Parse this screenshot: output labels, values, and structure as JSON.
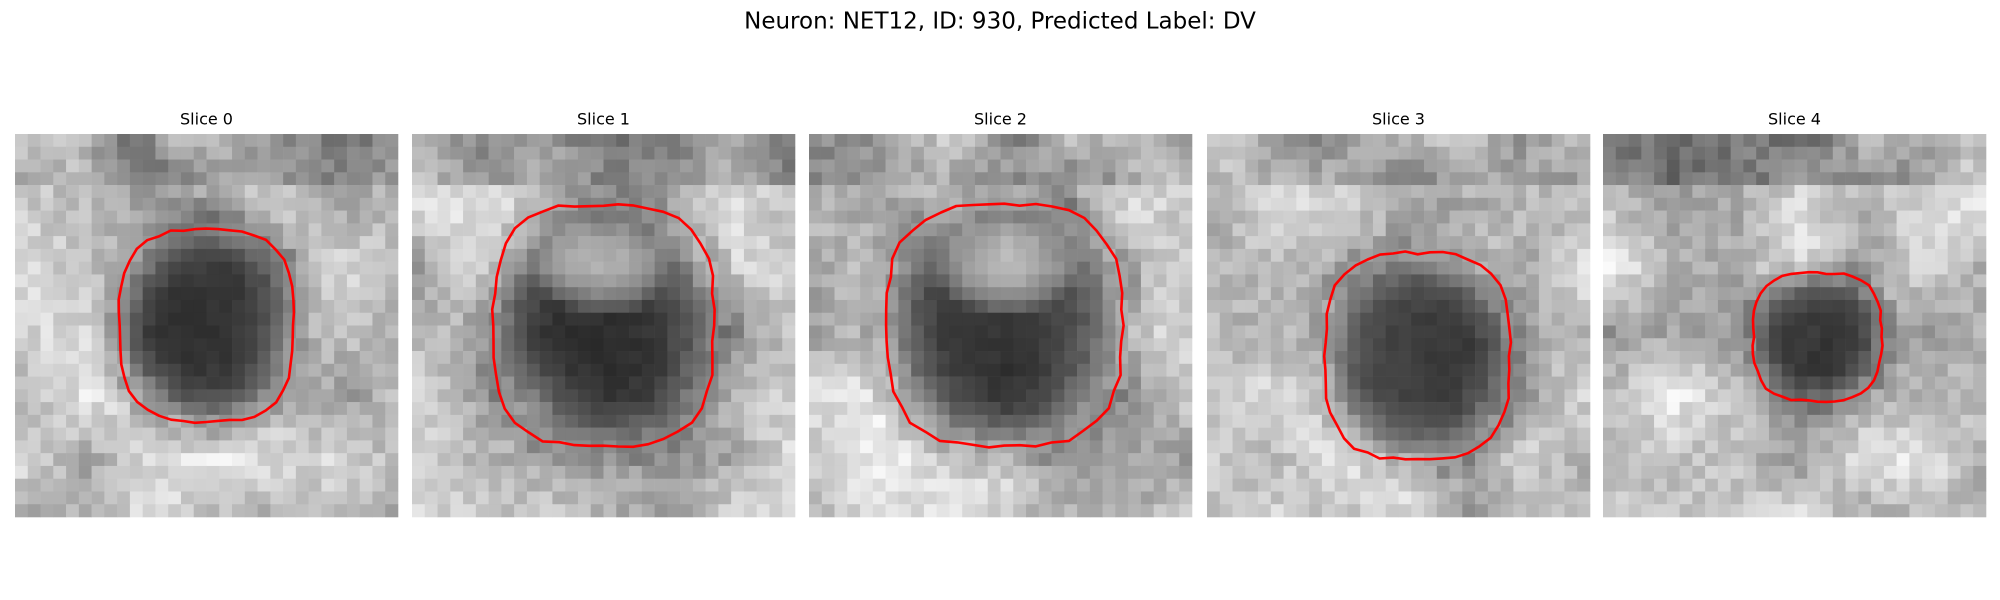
{
  "title": "Neuron: NET12, ID: 930, Predicted Label: DV",
  "panels": [
    {
      "title": "Slice 0"
    },
    {
      "title": "Slice 1"
    },
    {
      "title": "Slice 2"
    },
    {
      "title": "Slice 3"
    },
    {
      "title": "Slice 4"
    }
  ]
}
